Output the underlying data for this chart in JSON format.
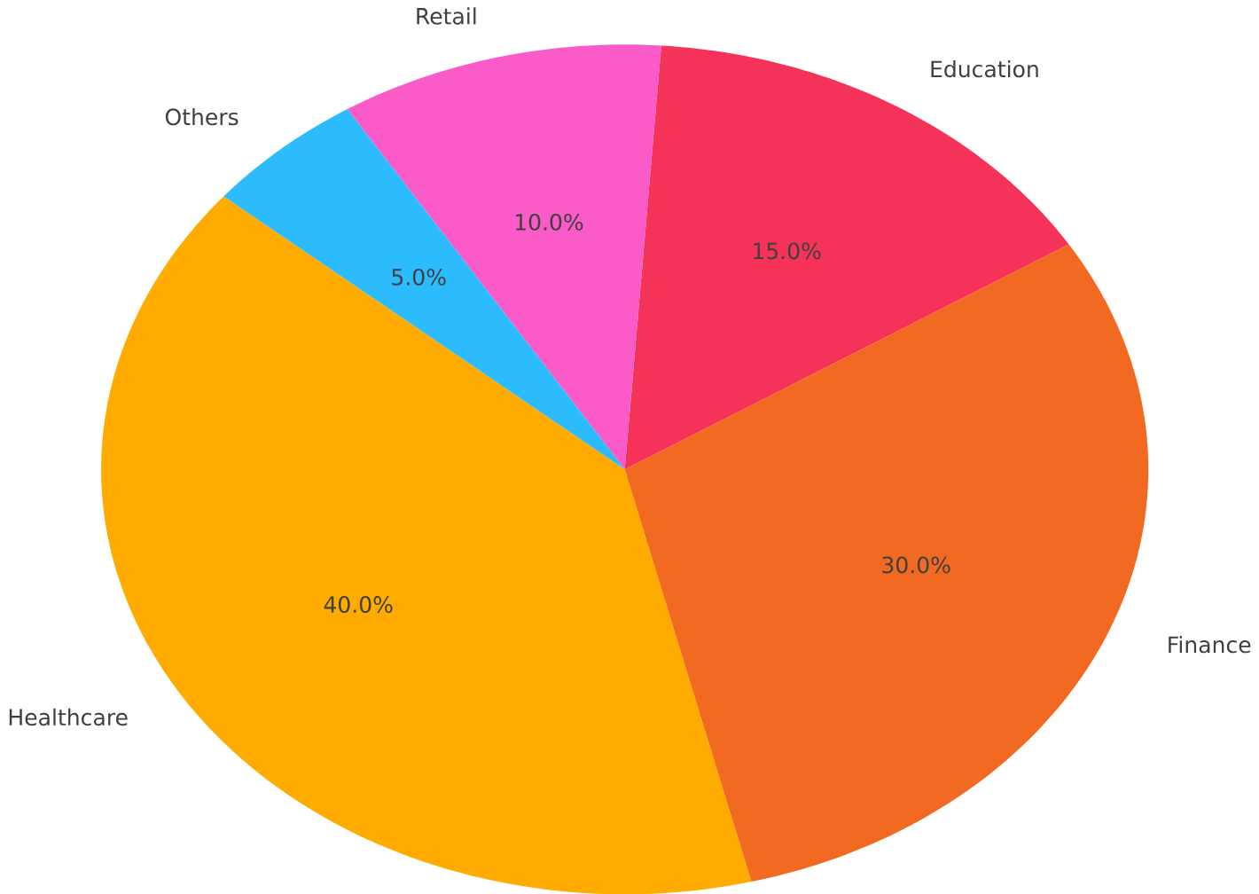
{
  "chart_data": {
    "type": "pie",
    "categories": [
      "Healthcare",
      "Finance",
      "Education",
      "Retail",
      "Others"
    ],
    "values": [
      40,
      30,
      15,
      10,
      5
    ],
    "value_labels": [
      "40.0%",
      "30.0%",
      "15.0%",
      "10.0%",
      "5.0%"
    ],
    "colors": [
      "#ffab00",
      "#f26a22",
      "#f53257",
      "#fa5bc9",
      "#2cbcfe"
    ]
  }
}
